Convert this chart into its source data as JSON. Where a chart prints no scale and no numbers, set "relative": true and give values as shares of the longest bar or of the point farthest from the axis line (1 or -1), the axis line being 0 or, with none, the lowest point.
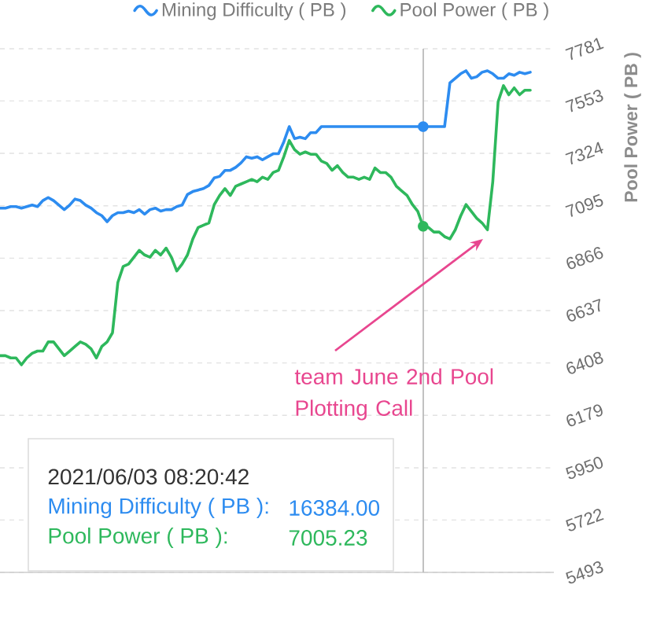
{
  "chart_data": [
    {
      "type": "line",
      "legend": "top",
      "relative": true,
      "categories": [
        null,
        null,
        null,
        null,
        null,
        null,
        null,
        null,
        null,
        null,
        null,
        null,
        null,
        null,
        null,
        null,
        null,
        null,
        null,
        null,
        null,
        null,
        null,
        null,
        null,
        null,
        null,
        null,
        null,
        null,
        null,
        null,
        null,
        null,
        null,
        null,
        null,
        null,
        null,
        null,
        null,
        null,
        null,
        null,
        null,
        null,
        null,
        null,
        null,
        null,
        null,
        null,
        null,
        null,
        null,
        null,
        null,
        null,
        null,
        null,
        null,
        null,
        null,
        null,
        null,
        null,
        null,
        null,
        null,
        null,
        null,
        null,
        null,
        null,
        null,
        null,
        null,
        null,
        null,
        null,
        null,
        null,
        null,
        null,
        null,
        null,
        null,
        null,
        null,
        null,
        null,
        null,
        null,
        null,
        null,
        null,
        null,
        null,
        null,
        null
      ],
      "series": [
        {
          "name": "Mining Difficulty ( PB )",
          "color": "#2d8cf0",
          "values": [
            0.09,
            0.09,
            0.1,
            0.1,
            0.09,
            0.1,
            0.11,
            0.1,
            0.14,
            0.16,
            0.14,
            0.11,
            0.08,
            0.11,
            0.15,
            0.14,
            0.11,
            0.09,
            0.06,
            0.04,
            0,
            0.04,
            0.06,
            0.06,
            0.07,
            0.06,
            0.08,
            0.05,
            0.08,
            0.09,
            0.07,
            0.08,
            0.08,
            0.1,
            0.11,
            0.18,
            0.2,
            0.21,
            0.22,
            0.24,
            0.29,
            0.3,
            0.34,
            0.34,
            0.36,
            0.39,
            0.43,
            0.42,
            0.43,
            0.41,
            0.43,
            0.45,
            0.45,
            0.53,
            0.63,
            0.55,
            0.56,
            0.55,
            0.59,
            0.59,
            0.63,
            0.63,
            0.63,
            0.63,
            0.63,
            0.63,
            0.63,
            0.63,
            0.63,
            0.63,
            0.63,
            0.63,
            0.63,
            0.63,
            0.63,
            0.63,
            0.63,
            0.63,
            0.63,
            0.63,
            0.63,
            0.63,
            0.63,
            0.63,
            0.92,
            0.95,
            0.98,
            1,
            0.95,
            0.96,
            0.99,
            1,
            0.98,
            0.95,
            0.95,
            0.98,
            0.97,
            0.99,
            0.98,
            0.99
          ]
        }
      ],
      "annotations": [
        "2021/06/03 08:20:42",
        "Mining Difficulty ( PB ):",
        "16384.00"
      ]
    },
    {
      "type": "line",
      "legend": "top",
      "grid": "y",
      "ylabel": "Pool Power ( PB )",
      "ylim": [
        5493,
        7781
      ],
      "yticks": [
        5493,
        5722,
        5950,
        6179,
        6408,
        6637,
        6866,
        7095,
        7324,
        7553,
        7781
      ],
      "categories": [
        null,
        null,
        null,
        null,
        null,
        null,
        null,
        null,
        null,
        null,
        null,
        null,
        null,
        null,
        null,
        null,
        null,
        null,
        null,
        null,
        null,
        null,
        null,
        null,
        null,
        null,
        null,
        null,
        null,
        null,
        null,
        null,
        null,
        null,
        null,
        null,
        null,
        null,
        null,
        null,
        null,
        null,
        null,
        null,
        null,
        null,
        null,
        null,
        null,
        null,
        null,
        null,
        null,
        null,
        null,
        null,
        null,
        null,
        null,
        null,
        null,
        null,
        null,
        null,
        null,
        null,
        null,
        null,
        null,
        null,
        null,
        null,
        null,
        null,
        null,
        null,
        null,
        null,
        null,
        null,
        null,
        null,
        null,
        null,
        null,
        null,
        null,
        null,
        null,
        null,
        null,
        null,
        null,
        null,
        null,
        null,
        null,
        null,
        null,
        null
      ],
      "series": [
        {
          "name": "Pool Power ( PB )",
          "color": "#2eb85c",
          "values": [
            6440,
            6440,
            6430,
            6430,
            6400,
            6430,
            6450,
            6460,
            6460,
            6500,
            6500,
            6470,
            6440,
            6460,
            6480,
            6500,
            6490,
            6470,
            6430,
            6480,
            6500,
            6540,
            6760,
            6830,
            6840,
            6870,
            6900,
            6880,
            6870,
            6900,
            6880,
            6910,
            6870,
            6810,
            6840,
            6880,
            6950,
            7000,
            7010,
            7020,
            7100,
            7140,
            7170,
            7140,
            7180,
            7190,
            7200,
            7210,
            7200,
            7220,
            7210,
            7240,
            7250,
            7310,
            7380,
            7340,
            7320,
            7330,
            7320,
            7320,
            7290,
            7280,
            7250,
            7270,
            7240,
            7220,
            7220,
            7210,
            7220,
            7210,
            7260,
            7240,
            7240,
            7220,
            7180,
            7160,
            7140,
            7100,
            7070,
            7005.23,
            7000,
            6980,
            6980,
            6960,
            6950,
            6990,
            7050,
            7100,
            7070,
            7040,
            7020,
            6990,
            7200,
            7550,
            7620,
            7580,
            7610,
            7580,
            7600,
            7600
          ]
        }
      ],
      "annotations": [
        "Pool Power ( PB ):",
        "7005.23",
        "team June 2nd Pool Plotting Call"
      ]
    }
  ]
}
